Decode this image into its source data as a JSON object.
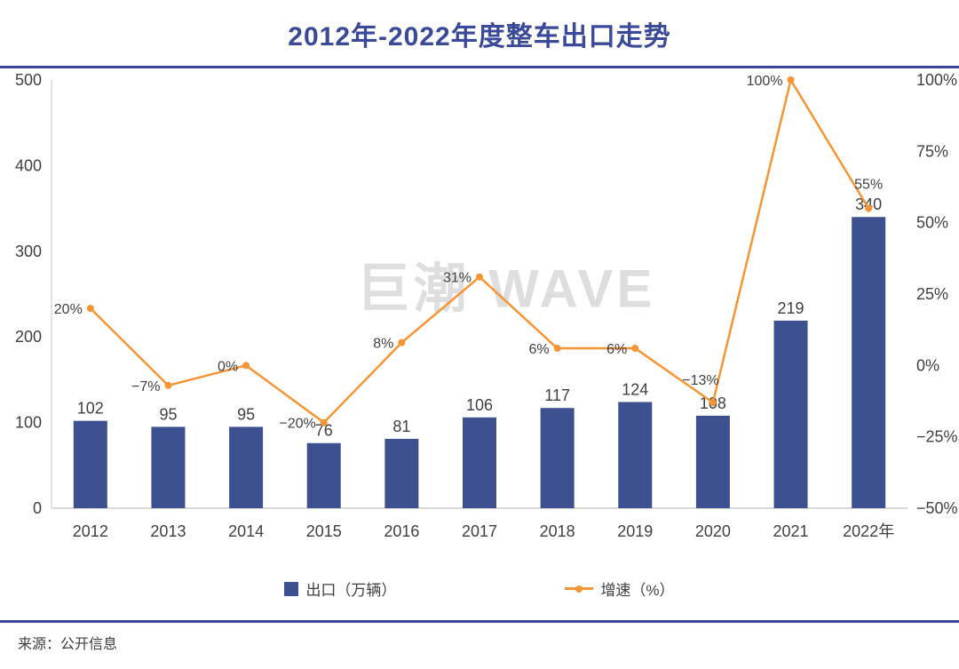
{
  "title": "2012年-2022年度整车出口走势",
  "watermark": "巨潮 WAVE",
  "footer": {
    "source": "来源：公开信息"
  },
  "legend": {
    "bar_label": "出口（万辆）",
    "line_label": "增速（%）"
  },
  "colors": {
    "bar": "#3D5190",
    "line": "#F79433",
    "title": "#3A4A99",
    "rule": "#39439B",
    "axis_line": "#D9D9D9",
    "tick_text": "#404040",
    "watermark": "#DEDEDE"
  },
  "chart_data": {
    "type": "bar",
    "subtype": "bar+line combo",
    "title": "2012年-2022年度整车出口走势",
    "categories": [
      "2012",
      "2013",
      "2014",
      "2015",
      "2016",
      "2017",
      "2018",
      "2019",
      "2020",
      "2021",
      "2022年"
    ],
    "series": [
      {
        "name": "出口（万辆）",
        "type": "bar",
        "axis": "left",
        "values": [
          102,
          95,
          95,
          76,
          81,
          106,
          117,
          124,
          108,
          219,
          340
        ]
      },
      {
        "name": "增速（%）",
        "type": "line",
        "axis": "right",
        "values": [
          20,
          -7,
          0,
          -20,
          8,
          31,
          6,
          6,
          -13,
          100,
          55
        ],
        "point_labels": [
          "20%",
          "−7%",
          "0%",
          "−20%",
          "8%",
          "31%",
          "6%",
          "6%",
          "−13%",
          "100%",
          "55%"
        ],
        "label_placement": [
          "left",
          "left",
          "left",
          "left",
          "left",
          "left",
          "left",
          "left",
          "above-left",
          "left",
          "above"
        ]
      }
    ],
    "left_axis": {
      "min": 0,
      "max": 500,
      "step": 100,
      "tick_values": [
        500,
        400,
        300,
        200,
        100,
        0
      ],
      "ticks": [
        "500",
        "400",
        "300",
        "200",
        "100",
        "0"
      ]
    },
    "right_axis": {
      "min": -50,
      "max": 100,
      "step": 25,
      "tick_values": [
        100,
        75,
        50,
        25,
        0,
        -25,
        -50
      ],
      "ticks": [
        "100%",
        "75%",
        "50%",
        "25%",
        "0%",
        "−25%",
        "−50%"
      ]
    },
    "grid": false,
    "legend_position": "bottom"
  }
}
